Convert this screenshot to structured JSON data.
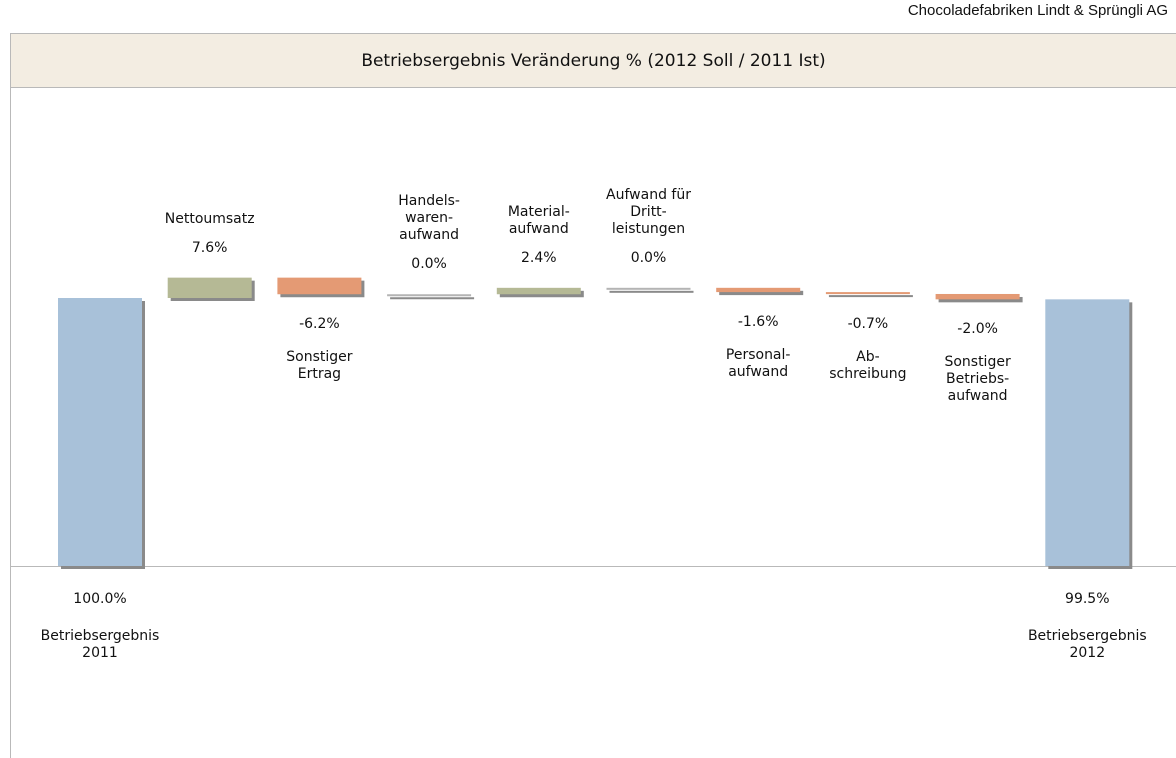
{
  "company": "Chocoladefabriken Lindt & Sprüngli AG",
  "chart_data": {
    "type": "waterfall",
    "title": "Betriebsergebnis Veränderung % (2012 Soll / 2011 Ist)",
    "categories": [
      "Betriebsergebnis\n2011",
      "Nettoumsatz",
      "Sonstiger\nErtrag",
      "Handels-\nwaren-\naufwand",
      "Material-\naufwand",
      "Aufwand für\nDritt-\nleistungen",
      "Personal-\naufwand",
      "Ab-\nschreibung",
      "Sonstiger\nBetriebs-\naufwand",
      "Betriebsergebnis\n2012"
    ],
    "measure": [
      "absolute",
      "relative",
      "relative",
      "relative",
      "relative",
      "relative",
      "relative",
      "relative",
      "relative",
      "total"
    ],
    "values": [
      100,
      7.6,
      -6.2,
      0,
      2.4,
      0,
      -1.6,
      -0.7,
      -2.0,
      99.5
    ],
    "value_labels": [
      "100.0%",
      "7.6%",
      "-6.2%",
      "0.0%",
      "2.4%",
      "0.0%",
      "-1.6%",
      "-0.7%",
      "-2.0%",
      "99.5%"
    ],
    "colors": {
      "total": "#a8c1d9",
      "increase": "#b5b995",
      "decrease": "#e49a74",
      "zero": "#b4b4b4"
    },
    "ylim": [
      0,
      150
    ]
  }
}
